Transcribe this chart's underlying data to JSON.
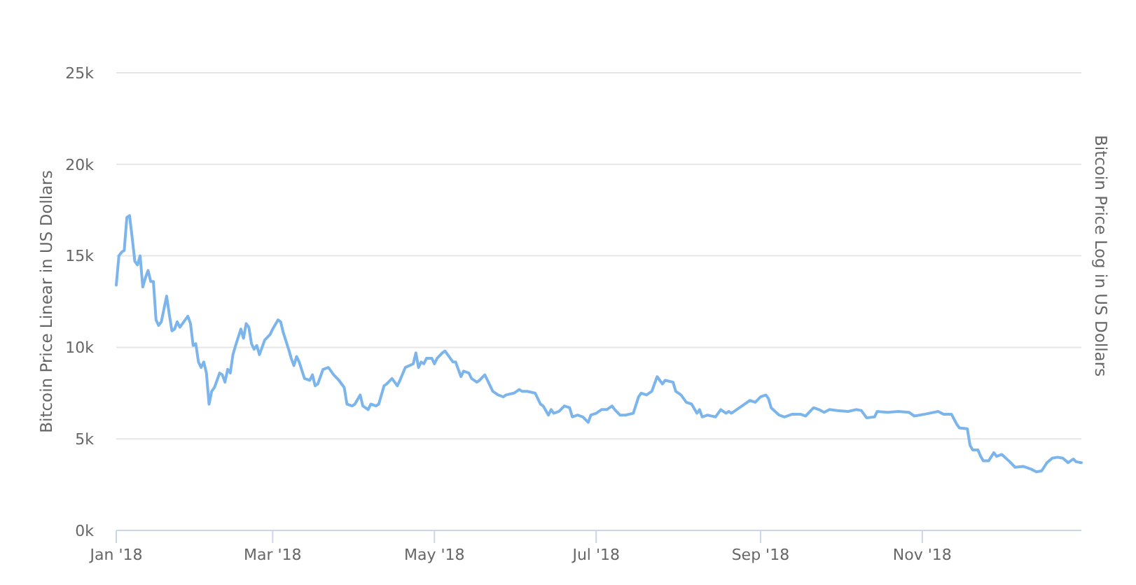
{
  "chart_data": {
    "type": "line",
    "ylabel": "Bitcoin Price Linear in US Dollars",
    "y2label": "Bitcoin Price Log in US Dollars",
    "xlim": [
      "2018-01-01",
      "2018-12-31"
    ],
    "xticks": [
      {
        "value": "2018-01-01",
        "label": "Jan '18"
      },
      {
        "value": "2018-03-01",
        "label": "Mar '18"
      },
      {
        "value": "2018-05-01",
        "label": "May '18"
      },
      {
        "value": "2018-07-01",
        "label": "Jul '18"
      },
      {
        "value": "2018-09-01",
        "label": "Sep '18"
      },
      {
        "value": "2018-11-01",
        "label": "Nov '18"
      }
    ],
    "ylim": [
      0,
      25000
    ],
    "yticks": [
      {
        "value": 0,
        "label": "0k"
      },
      {
        "value": 5000,
        "label": "5k"
      },
      {
        "value": 10000,
        "label": "10k"
      },
      {
        "value": 15000,
        "label": "15k"
      },
      {
        "value": 20000,
        "label": "20k"
      },
      {
        "value": 25000,
        "label": "25k"
      }
    ],
    "grid": "y",
    "x": [
      "2018-01-01",
      "2018-01-02",
      "2018-01-03",
      "2018-01-04",
      "2018-01-05",
      "2018-01-06",
      "2018-01-07",
      "2018-01-08",
      "2018-01-09",
      "2018-01-10",
      "2018-01-11",
      "2018-01-12",
      "2018-01-13",
      "2018-01-14",
      "2018-01-15",
      "2018-01-16",
      "2018-01-17",
      "2018-01-18",
      "2018-01-20",
      "2018-01-21",
      "2018-01-22",
      "2018-01-23",
      "2018-01-24",
      "2018-01-25",
      "2018-01-26",
      "2018-01-28",
      "2018-01-29",
      "2018-01-30",
      "2018-01-31",
      "2018-02-01",
      "2018-02-02",
      "2018-02-03",
      "2018-02-04",
      "2018-02-05",
      "2018-02-06",
      "2018-02-07",
      "2018-02-09",
      "2018-02-10",
      "2018-02-11",
      "2018-02-12",
      "2018-02-13",
      "2018-02-14",
      "2018-02-15",
      "2018-02-17",
      "2018-02-18",
      "2018-02-19",
      "2018-02-20",
      "2018-02-21",
      "2018-02-22",
      "2018-02-23",
      "2018-02-24",
      "2018-02-26",
      "2018-02-28",
      "2018-03-01",
      "2018-03-03",
      "2018-03-04",
      "2018-03-05",
      "2018-03-07",
      "2018-03-08",
      "2018-03-09",
      "2018-03-10",
      "2018-03-11",
      "2018-03-13",
      "2018-03-15",
      "2018-03-16",
      "2018-03-17",
      "2018-03-18",
      "2018-03-20",
      "2018-03-22",
      "2018-03-23",
      "2018-03-24",
      "2018-03-26",
      "2018-03-27",
      "2018-03-28",
      "2018-03-29",
      "2018-03-31",
      "2018-04-01",
      "2018-04-03",
      "2018-04-04",
      "2018-04-06",
      "2018-04-07",
      "2018-04-09",
      "2018-04-10",
      "2018-04-12",
      "2018-04-13",
      "2018-04-15",
      "2018-04-17",
      "2018-04-18",
      "2018-04-20",
      "2018-04-23",
      "2018-04-24",
      "2018-04-25",
      "2018-04-26",
      "2018-04-27",
      "2018-04-28",
      "2018-04-30",
      "2018-05-01",
      "2018-05-02",
      "2018-05-04",
      "2018-05-05",
      "2018-05-06",
      "2018-05-08",
      "2018-05-09",
      "2018-05-11",
      "2018-05-12",
      "2018-05-14",
      "2018-05-15",
      "2018-05-17",
      "2018-05-18",
      "2018-05-20",
      "2018-05-21",
      "2018-05-23",
      "2018-05-25",
      "2018-05-27",
      "2018-05-28",
      "2018-05-31",
      "2018-06-02",
      "2018-06-03",
      "2018-06-05",
      "2018-06-08",
      "2018-06-10",
      "2018-06-11",
      "2018-06-13",
      "2018-06-14",
      "2018-06-15",
      "2018-06-17",
      "2018-06-19",
      "2018-06-21",
      "2018-06-22",
      "2018-06-24",
      "2018-06-26",
      "2018-06-28",
      "2018-06-29",
      "2018-07-01",
      "2018-07-03",
      "2018-07-05",
      "2018-07-07",
      "2018-07-08",
      "2018-07-10",
      "2018-07-12",
      "2018-07-15",
      "2018-07-17",
      "2018-07-18",
      "2018-07-20",
      "2018-07-22",
      "2018-07-24",
      "2018-07-26",
      "2018-07-27",
      "2018-07-30",
      "2018-07-31",
      "2018-08-02",
      "2018-08-04",
      "2018-08-06",
      "2018-08-08",
      "2018-08-09",
      "2018-08-10",
      "2018-08-12",
      "2018-08-15",
      "2018-08-17",
      "2018-08-19",
      "2018-08-20",
      "2018-08-21",
      "2018-08-23",
      "2018-08-25",
      "2018-08-28",
      "2018-08-30",
      "2018-09-01",
      "2018-09-03",
      "2018-09-04",
      "2018-09-05",
      "2018-09-08",
      "2018-09-10",
      "2018-09-13",
      "2018-09-16",
      "2018-09-18",
      "2018-09-21",
      "2018-09-23",
      "2018-09-25",
      "2018-09-27",
      "2018-09-30",
      "2018-10-04",
      "2018-10-07",
      "2018-10-09",
      "2018-10-11",
      "2018-10-14",
      "2018-10-15",
      "2018-10-19",
      "2018-10-23",
      "2018-10-27",
      "2018-10-29",
      "2018-11-02",
      "2018-11-07",
      "2018-11-09",
      "2018-11-12",
      "2018-11-14",
      "2018-11-15",
      "2018-11-18",
      "2018-11-19",
      "2018-11-20",
      "2018-11-22",
      "2018-11-23",
      "2018-11-24",
      "2018-11-26",
      "2018-11-28",
      "2018-11-29",
      "2018-12-01",
      "2018-12-04",
      "2018-12-06",
      "2018-12-09",
      "2018-12-12",
      "2018-12-14",
      "2018-12-16",
      "2018-12-18",
      "2018-12-20",
      "2018-12-22",
      "2018-12-24",
      "2018-12-26",
      "2018-12-28",
      "2018-12-29",
      "2018-12-31"
    ],
    "series": [
      {
        "color": "#7cb5ec",
        "values": [
          13400,
          15000,
          15200,
          15300,
          17100,
          17200,
          16000,
          14700,
          14500,
          15000,
          13300,
          13800,
          14200,
          13600,
          13600,
          11500,
          11200,
          11400,
          12800,
          11800,
          10900,
          11000,
          11400,
          11100,
          11300,
          11700,
          11300,
          10100,
          10200,
          9200,
          8900,
          9200,
          8600,
          6900,
          7600,
          7800,
          8600,
          8500,
          8100,
          8800,
          8600,
          9600,
          10100,
          11000,
          10500,
          11300,
          11100,
          10200,
          9900,
          10100,
          9600,
          10400,
          10700,
          11000,
          11500,
          11400,
          10800,
          9900,
          9400,
          9000,
          9500,
          9200,
          8300,
          8200,
          8500,
          7900,
          8000,
          8800,
          8900,
          8700,
          8500,
          8200,
          8000,
          7800,
          6900,
          6800,
          6900,
          7400,
          6800,
          6600,
          6900,
          6800,
          6900,
          7900,
          8000,
          8300,
          7900,
          8200,
          8900,
          9100,
          9700,
          8900,
          9200,
          9100,
          9400,
          9400,
          9100,
          9400,
          9700,
          9800,
          9600,
          9200,
          9200,
          8400,
          8700,
          8600,
          8300,
          8100,
          8200,
          8500,
          8200,
          7600,
          7400,
          7300,
          7400,
          7500,
          7700,
          7600,
          7600,
          7500,
          6900,
          6800,
          6300,
          6600,
          6400,
          6500,
          6800,
          6700,
          6200,
          6300,
          6200,
          5900,
          6300,
          6400,
          6600,
          6600,
          6800,
          6600,
          6300,
          6300,
          6400,
          7300,
          7500,
          7400,
          7600,
          8400,
          8000,
          8200,
          8100,
          7600,
          7400,
          7000,
          6900,
          6400,
          6600,
          6200,
          6300,
          6200,
          6600,
          6400,
          6500,
          6400,
          6600,
          6800,
          7100,
          7000,
          7300,
          7400,
          7200,
          6700,
          6300,
          6200,
          6350,
          6350,
          6250,
          6700,
          6600,
          6450,
          6600,
          6550,
          6500,
          6600,
          6550,
          6150,
          6200,
          6500,
          6450,
          6500,
          6450,
          6250,
          6350,
          6500,
          6350,
          6350,
          5800,
          5600,
          5550,
          4650,
          4400,
          4400,
          4050,
          3800,
          3800,
          4250,
          4050,
          4150,
          3750,
          3450,
          3500,
          3350,
          3200,
          3250,
          3700,
          3950,
          4000,
          3950,
          3700,
          3900,
          3750,
          3700
        ]
      }
    ]
  }
}
